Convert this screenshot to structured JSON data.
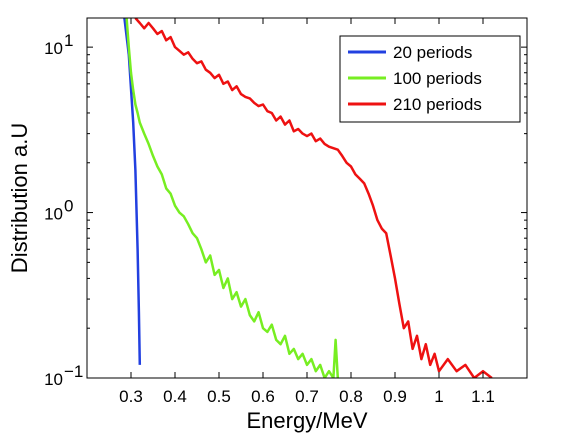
{
  "chart_data": {
    "type": "line",
    "title": "",
    "xlabel": "Energy/MeV",
    "ylabel": "Distribution a.U",
    "xlim": [
      0.2,
      1.2
    ],
    "ylim": [
      0.1,
      15
    ],
    "y_scale": "log",
    "x_ticks": [
      0.3,
      0.4,
      0.5,
      0.6,
      0.7,
      0.8,
      0.9,
      1.0,
      1.1
    ],
    "x_tick_labels": [
      "0.3",
      "0.4",
      "0.5",
      "0.6",
      "0.7",
      "0.8",
      "0.9",
      "1",
      "1.1"
    ],
    "y_ticks": [
      {
        "value": 0.1,
        "base": "10",
        "exp": "−1"
      },
      {
        "value": 1,
        "base": "10",
        "exp": "0"
      },
      {
        "value": 10,
        "base": "10",
        "exp": "1"
      }
    ],
    "grid": false,
    "legend_position": "top-right",
    "series": [
      {
        "name": "20 periods",
        "color": "#2240e0",
        "x": [
          0.285,
          0.295,
          0.305,
          0.31,
          0.315,
          0.318,
          0.32
        ],
        "y": [
          15,
          9,
          3.5,
          1.8,
          0.6,
          0.25,
          0.12
        ]
      },
      {
        "name": "100 periods",
        "color": "#77ee22",
        "x": [
          0.29,
          0.295,
          0.3,
          0.305,
          0.31,
          0.315,
          0.32,
          0.33,
          0.34,
          0.35,
          0.36,
          0.37,
          0.38,
          0.39,
          0.4,
          0.41,
          0.42,
          0.43,
          0.44,
          0.45,
          0.46,
          0.47,
          0.48,
          0.49,
          0.5,
          0.51,
          0.52,
          0.53,
          0.54,
          0.55,
          0.56,
          0.57,
          0.58,
          0.59,
          0.6,
          0.61,
          0.62,
          0.63,
          0.64,
          0.65,
          0.66,
          0.67,
          0.68,
          0.69,
          0.7,
          0.71,
          0.72,
          0.73,
          0.74,
          0.75,
          0.76,
          0.765,
          0.77
        ],
        "y": [
          15,
          10,
          7,
          5.5,
          4.5,
          4.0,
          3.5,
          3.0,
          2.6,
          2.2,
          1.9,
          1.7,
          1.4,
          1.3,
          1.1,
          1.0,
          0.95,
          0.85,
          0.75,
          0.7,
          0.6,
          0.5,
          0.55,
          0.42,
          0.45,
          0.35,
          0.4,
          0.3,
          0.33,
          0.27,
          0.3,
          0.24,
          0.22,
          0.25,
          0.2,
          0.19,
          0.21,
          0.17,
          0.16,
          0.18,
          0.14,
          0.15,
          0.13,
          0.14,
          0.12,
          0.13,
          0.11,
          0.12,
          0.1,
          0.11,
          0.1,
          0.17,
          0.1
        ]
      },
      {
        "name": "210 periods",
        "color": "#ee1111",
        "x": [
          0.31,
          0.32,
          0.33,
          0.34,
          0.35,
          0.36,
          0.37,
          0.38,
          0.39,
          0.4,
          0.41,
          0.42,
          0.43,
          0.44,
          0.45,
          0.46,
          0.47,
          0.48,
          0.49,
          0.5,
          0.51,
          0.52,
          0.53,
          0.54,
          0.55,
          0.56,
          0.57,
          0.58,
          0.59,
          0.6,
          0.61,
          0.62,
          0.63,
          0.64,
          0.65,
          0.66,
          0.67,
          0.68,
          0.69,
          0.7,
          0.71,
          0.72,
          0.73,
          0.74,
          0.75,
          0.76,
          0.77,
          0.78,
          0.79,
          0.8,
          0.81,
          0.82,
          0.83,
          0.84,
          0.85,
          0.86,
          0.87,
          0.88,
          0.89,
          0.9,
          0.91,
          0.92,
          0.93,
          0.94,
          0.95,
          0.96,
          0.97,
          0.98,
          0.99,
          1.0,
          1.02,
          1.04,
          1.06,
          1.08,
          1.1,
          1.12
        ],
        "y": [
          15,
          14,
          13,
          14,
          13,
          12,
          12.5,
          11,
          11.5,
          10,
          9.5,
          9,
          9.3,
          8.5,
          8,
          8.2,
          7.3,
          7,
          6.5,
          6.8,
          6,
          6.2,
          5.5,
          5.8,
          5.2,
          5,
          4.9,
          4.6,
          4.4,
          4.5,
          4.1,
          4.0,
          3.6,
          3.8,
          3.4,
          3.6,
          3.1,
          3.2,
          3.0,
          2.9,
          3.0,
          2.7,
          2.8,
          2.6,
          2.5,
          2.45,
          2.4,
          2.2,
          2.0,
          1.9,
          1.7,
          1.6,
          1.5,
          1.3,
          1.1,
          0.9,
          0.8,
          0.75,
          0.55,
          0.4,
          0.28,
          0.2,
          0.22,
          0.15,
          0.18,
          0.13,
          0.16,
          0.12,
          0.14,
          0.11,
          0.13,
          0.11,
          0.12,
          0.1,
          0.11,
          0.1
        ]
      }
    ]
  }
}
